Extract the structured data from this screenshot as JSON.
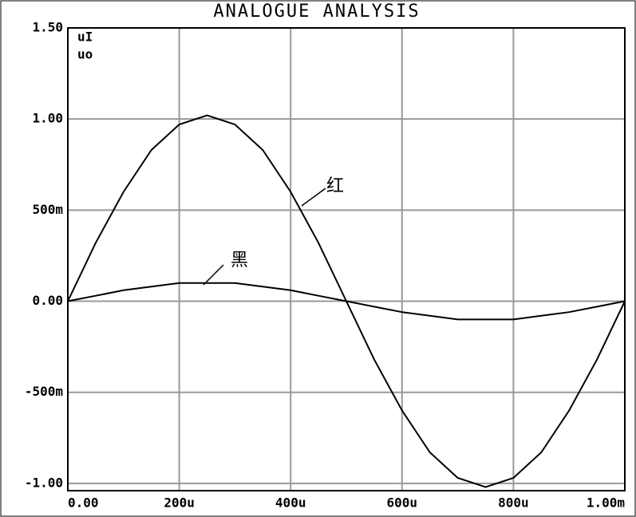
{
  "chart_data": {
    "type": "line",
    "title": "ANALOGUE ANALYSIS",
    "x": [
      0,
      5e-05,
      0.0001,
      0.00015,
      0.0002,
      0.00025,
      0.0003,
      0.00035,
      0.0004,
      0.00045,
      0.0005,
      0.00055,
      0.0006,
      0.00065,
      0.0007,
      0.00075,
      0.0008,
      0.00085,
      0.0009,
      0.00095,
      0.001
    ],
    "series": [
      {
        "name": "uI",
        "color": "#000000",
        "values": [
          0,
          0.32,
          0.6,
          0.83,
          0.97,
          1.02,
          0.97,
          0.83,
          0.6,
          0.32,
          0,
          -0.32,
          -0.6,
          -0.83,
          -0.97,
          -1.02,
          -0.97,
          -0.83,
          -0.6,
          -0.32,
          0
        ]
      },
      {
        "name": "uo",
        "color": "#000000",
        "values": [
          0,
          0.03,
          0.06,
          0.08,
          0.1,
          0.1,
          0.1,
          0.08,
          0.06,
          0.03,
          0,
          -0.03,
          -0.06,
          -0.08,
          -0.1,
          -0.1,
          -0.1,
          -0.08,
          -0.06,
          -0.03,
          0
        ]
      }
    ],
    "xlim": [
      0,
      0.001
    ],
    "ylim": [
      -1.04,
      1.5
    ],
    "xticks": [
      {
        "value": 0,
        "label": "0.00"
      },
      {
        "value": 0.0002,
        "label": "200u"
      },
      {
        "value": 0.0004,
        "label": "400u"
      },
      {
        "value": 0.0006,
        "label": "600u"
      },
      {
        "value": 0.0008,
        "label": "800u"
      },
      {
        "value": 0.001,
        "label": "1.00m"
      }
    ],
    "yticks": [
      {
        "value": -1,
        "label": "-1.00"
      },
      {
        "value": -0.5,
        "label": "-500m"
      },
      {
        "value": 0,
        "label": "0.00"
      },
      {
        "value": 0.5,
        "label": "500m"
      },
      {
        "value": 1,
        "label": "1.00"
      },
      {
        "value": 1.5,
        "label": "1.50"
      }
    ],
    "grid": true,
    "grid_color": "#999999",
    "annotations": [
      "红",
      "黑"
    ]
  }
}
